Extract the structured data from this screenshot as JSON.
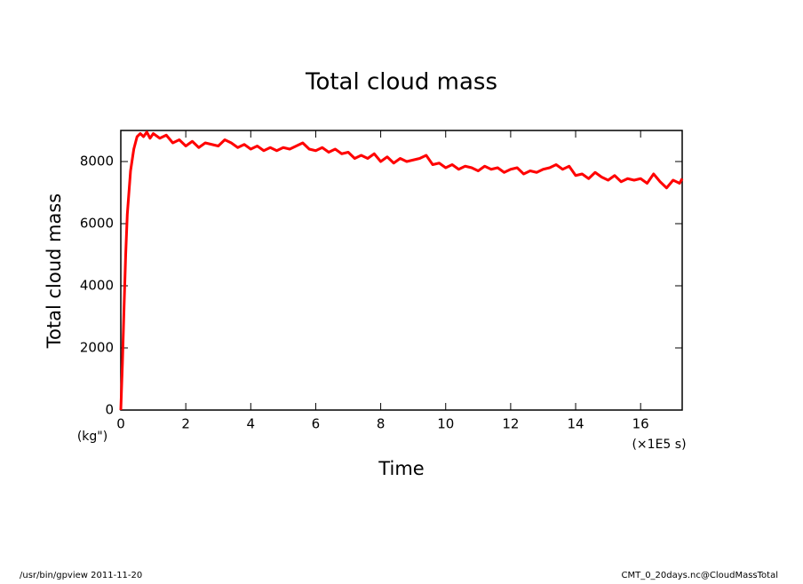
{
  "chart_data": {
    "type": "line",
    "title": "Total cloud mass",
    "x_label": "Time",
    "y_label": "Total cloud mass",
    "y_unit": "(kg\")",
    "x_unit": "(×1E5 s)",
    "footer_left": "/usr/bin/gpview  2011-11-20",
    "footer_right": "CMT_0_20days.nc@CloudMassTotal",
    "xlim": [
      0,
      17.28
    ],
    "ylim": [
      0,
      9000
    ],
    "xticks": [
      0,
      2,
      4,
      6,
      8,
      10,
      12,
      14,
      16
    ],
    "yticks": [
      0,
      2000,
      4000,
      6000,
      8000
    ],
    "x": [
      0,
      0.05,
      0.1,
      0.15,
      0.2,
      0.3,
      0.4,
      0.5,
      0.6,
      0.7,
      0.8,
      0.9,
      1.0,
      1.2,
      1.4,
      1.6,
      1.8,
      2.0,
      2.2,
      2.4,
      2.6,
      2.8,
      3.0,
      3.2,
      3.4,
      3.6,
      3.8,
      4.0,
      4.2,
      4.4,
      4.6,
      4.8,
      5.0,
      5.2,
      5.4,
      5.6,
      5.8,
      6.0,
      6.2,
      6.4,
      6.6,
      6.8,
      7.0,
      7.2,
      7.4,
      7.6,
      7.8,
      8.0,
      8.2,
      8.4,
      8.6,
      8.8,
      9.0,
      9.2,
      9.4,
      9.6,
      9.8,
      10.0,
      10.2,
      10.4,
      10.6,
      10.8,
      11.0,
      11.2,
      11.4,
      11.6,
      11.8,
      12.0,
      12.2,
      12.4,
      12.6,
      12.8,
      13.0,
      13.2,
      13.4,
      13.6,
      13.8,
      14.0,
      14.2,
      14.4,
      14.6,
      14.8,
      15.0,
      15.2,
      15.4,
      15.6,
      15.8,
      16.0,
      16.2,
      16.4,
      16.6,
      16.8,
      17.0,
      17.2,
      17.28
    ],
    "series": [
      {
        "color": "#ff0000",
        "values": [
          0,
          1500,
          3300,
          5000,
          6300,
          7700,
          8400,
          8800,
          8900,
          8800,
          8950,
          8750,
          8900,
          8750,
          8850,
          8600,
          8700,
          8500,
          8650,
          8450,
          8600,
          8550,
          8500,
          8700,
          8600,
          8450,
          8550,
          8400,
          8500,
          8350,
          8450,
          8350,
          8450,
          8400,
          8500,
          8600,
          8400,
          8350,
          8450,
          8300,
          8400,
          8250,
          8300,
          8100,
          8200,
          8100,
          8250,
          8000,
          8150,
          7950,
          8100,
          8000,
          8050,
          8100,
          8200,
          7900,
          7950,
          7800,
          7900,
          7750,
          7850,
          7800,
          7700,
          7850,
          7750,
          7800,
          7650,
          7750,
          7800,
          7600,
          7700,
          7650,
          7750,
          7800,
          7900,
          7750,
          7850,
          7550,
          7600,
          7450,
          7650,
          7500,
          7400,
          7550,
          7350,
          7450,
          7400,
          7450,
          7300,
          7600,
          7350,
          7150,
          7400,
          7300,
          7450
        ]
      }
    ]
  }
}
